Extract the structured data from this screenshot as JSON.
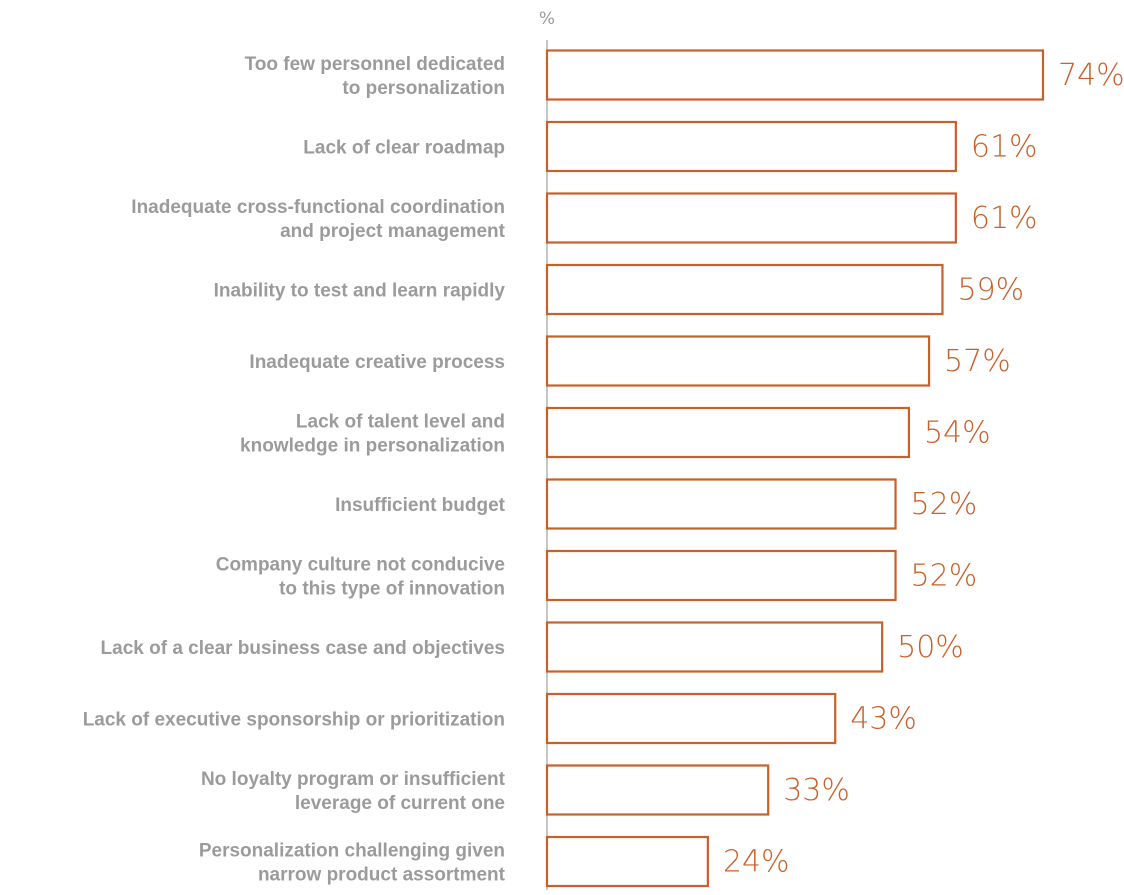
{
  "chart_data": {
    "type": "bar",
    "orientation": "horizontal",
    "unit_label": "%",
    "value_suffix": "%",
    "xlim": [
      0,
      74
    ],
    "bar_color": "#c8602a",
    "label_color": "#9b9b9b",
    "axis_color": "#8c8c8c",
    "grid": false,
    "categories": [
      [
        "Too few personnel dedicated",
        "to personalization"
      ],
      [
        "Lack of clear roadmap"
      ],
      [
        "Inadequate cross-functional coordination",
        "and project management"
      ],
      [
        "Inability to test and learn rapidly"
      ],
      [
        "Inadequate creative process"
      ],
      [
        "Lack of talent level and",
        "knowledge in personalization"
      ],
      [
        "Insufficient budget"
      ],
      [
        "Company culture not conducive",
        "to this type of innovation"
      ],
      [
        "Lack of a clear business case and objectives"
      ],
      [
        "Lack of executive sponsorship or prioritization"
      ],
      [
        "No loyalty program or insufficient",
        "leverage of current one"
      ],
      [
        "Personalization challenging given",
        "narrow product assortment"
      ]
    ],
    "values": [
      74,
      61,
      61,
      59,
      57,
      54,
      52,
      52,
      50,
      43,
      33,
      24
    ]
  }
}
